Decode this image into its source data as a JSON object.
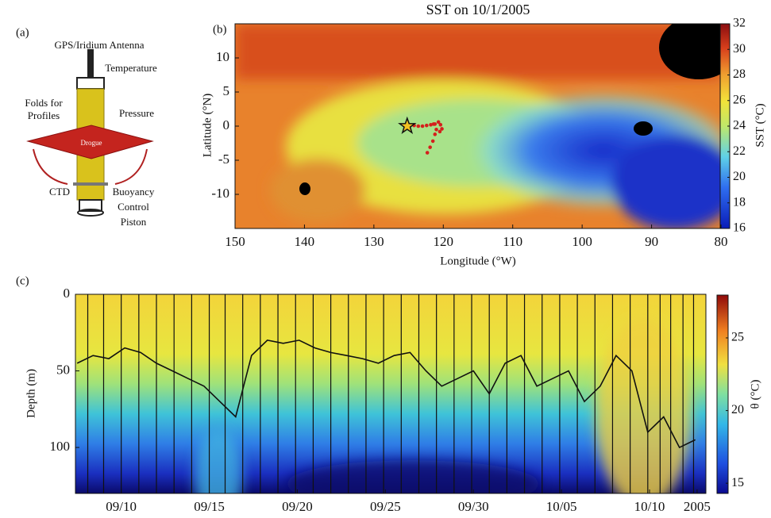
{
  "panel_a": {
    "label": "(a)",
    "labels": [
      "GPS/Iridium Antenna",
      "Temperature",
      "Folds for",
      "Profiles",
      "Pressure",
      "Drogue",
      "CTD",
      "Buoyancy",
      "Control",
      "Piston"
    ]
  },
  "chart_data": [
    {
      "type": "map",
      "label": "(b)",
      "title": "SST on 10/1/2005",
      "xlabel": "Longitude (°W)",
      "ylabel": "Latitude (°N)",
      "colorbar_label": "SST (°C)",
      "xlim": [
        150,
        80
      ],
      "xticks": [
        150,
        140,
        130,
        120,
        110,
        100,
        90,
        80
      ],
      "ylim": [
        -15,
        15
      ],
      "yticks": [
        -10,
        -5,
        0,
        5,
        10
      ],
      "clim": [
        16,
        32
      ],
      "cticks": [
        16,
        18,
        20,
        22,
        24,
        26,
        28,
        30,
        32
      ],
      "start": {
        "x": 125.2,
        "y": 0
      },
      "track": {
        "color": "#d4201c",
        "x": [
          124.2,
          123.6,
          123.0,
          122.4,
          121.8,
          121.2,
          120.7,
          120.4,
          120.2,
          120.5,
          121.0,
          121.4,
          121.2,
          121.5,
          121.9,
          122.3
        ],
        "y": [
          0.1,
          0.0,
          0.0,
          0.1,
          0.2,
          0.3,
          0.6,
          0.2,
          -0.4,
          -0.8,
          -0.5,
          0.3,
          -1.2,
          -2.2,
          -3.1,
          -3.9
        ]
      }
    },
    {
      "type": "contour",
      "label": "(c)",
      "ylabel": "Depth (m)",
      "colorbar_label": "θ (°C)",
      "xlim": [
        250.4,
        286.2
      ],
      "xticks": [
        {
          "value": 253,
          "label": "09/10"
        },
        {
          "value": 258,
          "label": "09/15"
        },
        {
          "value": 263,
          "label": "09/20"
        },
        {
          "value": 268,
          "label": "09/25"
        },
        {
          "value": 273,
          "label": "09/30"
        },
        {
          "value": 278,
          "label": "10/05"
        },
        {
          "value": 283,
          "label": "10/10"
        },
        {
          "value": 285.7,
          "label": "2005"
        }
      ],
      "ylim": [
        130,
        0
      ],
      "yticks": [
        0,
        50,
        100
      ],
      "clim": [
        14.3,
        28
      ],
      "cticks": [
        15,
        20,
        25
      ],
      "profiles": [
        251.1,
        252.0,
        253.0,
        254.0,
        255.0,
        256.0,
        257.0,
        258.0,
        258.9,
        259.9,
        260.9,
        261.9,
        262.9,
        263.9,
        264.9,
        265.9,
        266.9,
        267.9,
        268.9,
        269.9,
        270.9,
        271.9,
        272.9,
        273.9,
        274.9,
        275.9,
        276.9,
        277.9,
        278.9,
        279.9,
        280.9,
        281.9,
        282.9,
        283.6,
        284.2,
        284.9,
        285.5
      ],
      "mixed_layer": {
        "color": "#111111",
        "x": [
          250.5,
          251.4,
          252.3,
          253.2,
          254.1,
          255.0,
          255.9,
          256.8,
          257.7,
          258.6,
          259.5,
          260.4,
          261.3,
          262.2,
          263.1,
          264.0,
          264.9,
          265.8,
          266.7,
          267.6,
          268.5,
          269.4,
          270.3,
          271.2,
          272.1,
          273.0,
          273.9,
          274.8,
          275.7,
          276.6,
          277.5,
          278.4,
          279.3,
          280.2,
          281.1,
          282.0,
          282.9,
          283.8,
          284.7,
          285.6
        ],
        "y": [
          45,
          40,
          42,
          35,
          38,
          45,
          50,
          55,
          60,
          70,
          80,
          40,
          30,
          32,
          30,
          35,
          38,
          40,
          42,
          45,
          40,
          38,
          50,
          60,
          55,
          50,
          65,
          45,
          40,
          60,
          55,
          50,
          70,
          60,
          40,
          50,
          90,
          80,
          100,
          95
        ]
      }
    }
  ]
}
